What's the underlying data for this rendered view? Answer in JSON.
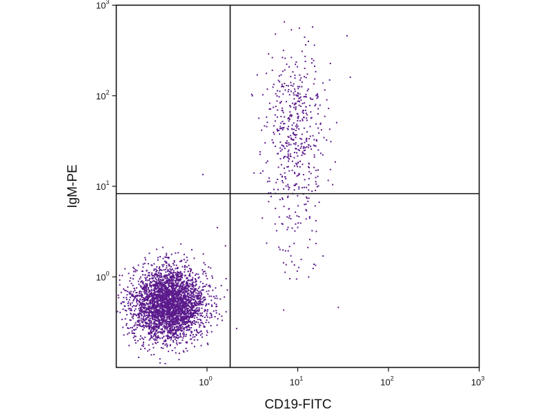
{
  "chart_data": {
    "type": "scatter",
    "title": "",
    "xlabel": "CD19-FITC",
    "ylabel": "IgM-PE",
    "x_scale": "log",
    "y_scale": "log",
    "xlim": [
      0.1,
      1000
    ],
    "ylim": [
      0.1,
      1000
    ],
    "x_ticks": [
      {
        "base": "10",
        "exp": "0",
        "value": 1
      },
      {
        "base": "10",
        "exp": "1",
        "value": 10
      },
      {
        "base": "10",
        "exp": "2",
        "value": 100
      },
      {
        "base": "10",
        "exp": "3",
        "value": 1000
      }
    ],
    "y_ticks": [
      {
        "base": "10",
        "exp": "0",
        "value": 1
      },
      {
        "base": "10",
        "exp": "1",
        "value": 10
      },
      {
        "base": "10",
        "exp": "2",
        "value": 100
      },
      {
        "base": "10",
        "exp": "3",
        "value": 1000
      }
    ],
    "quadrant_gates": {
      "x": 1.8,
      "y": 8.3
    },
    "grid": false,
    "point_color": "#5b1a8c",
    "populations": [
      {
        "center": [
          0.38,
          0.5
        ],
        "spread_log10": [
          0.2,
          0.2
        ],
        "count": 3300
      },
      {
        "center": [
          9.5,
          45
        ],
        "spread_log10": [
          0.17,
          0.42
        ],
        "count": 480
      },
      {
        "center": [
          9.5,
          2.5
        ],
        "spread_log10": [
          0.17,
          0.25
        ],
        "count": 55
      }
    ],
    "outliers": [
      [
        0.9,
        13.5
      ],
      [
        7.0,
        0.43
      ],
      [
        28,
        0.46
      ],
      [
        38,
        160
      ],
      [
        35,
        460
      ],
      [
        5.0,
        1000
      ],
      [
        1.3,
        3.5
      ],
      [
        1.6,
        2.2
      ]
    ]
  }
}
